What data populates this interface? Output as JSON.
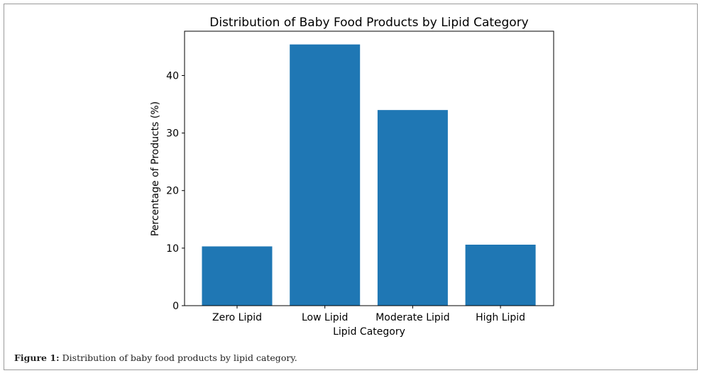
{
  "chart_data": {
    "type": "bar",
    "title": "Distribution of Baby Food Products by Lipid Category",
    "xlabel": "Lipid Category",
    "ylabel": "Percentage of Products (%)",
    "categories": [
      "Zero Lipid",
      "Low Lipid",
      "Moderate Lipid",
      "High Lipid"
    ],
    "values": [
      10.3,
      45.4,
      34.0,
      10.6
    ],
    "ylim": [
      0,
      47.7
    ],
    "yticks": [
      0,
      10,
      20,
      30,
      40
    ],
    "bar_color": "#1f77b4",
    "grid": false,
    "legend": "none"
  },
  "caption": {
    "label": "Figure 1:",
    "text": "Distribution of baby food products by lipid category."
  }
}
